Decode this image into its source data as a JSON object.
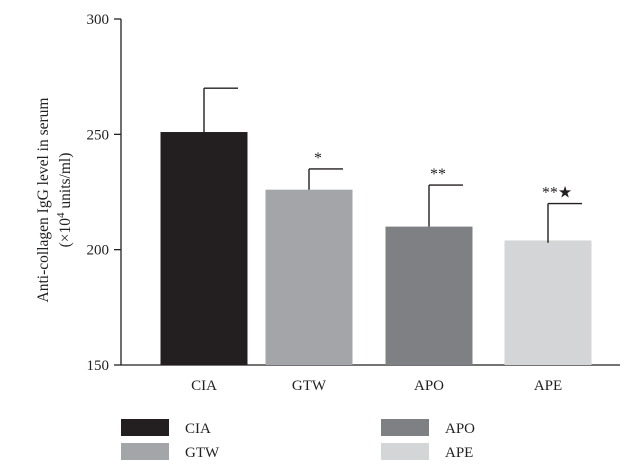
{
  "chart_data": {
    "type": "bar",
    "ylabel_line1": "Anti-collagen IgG level in serum",
    "ylabel_line2_prefix": "(×10",
    "ylabel_line2_exp": "4",
    "ylabel_line2_suffix": " units/ml)",
    "ylim": [
      150,
      300
    ],
    "yticks": [
      150,
      200,
      250,
      300
    ],
    "grid": false,
    "legend_position": "bottom",
    "categories": [
      "CIA",
      "GTW",
      "APO",
      "APE"
    ],
    "values": [
      251,
      226,
      210,
      204
    ],
    "error_upper": [
      270,
      235,
      228,
      220
    ],
    "error_lower": [
      251,
      226,
      210,
      203
    ],
    "annotations": [
      "",
      "*",
      "**",
      "**★"
    ],
    "colors": [
      "#231f20",
      "#a3a5a8",
      "#7f8083",
      "#d4d5d7"
    ],
    "legend": [
      {
        "label": "CIA",
        "color": "#231f20"
      },
      {
        "label": "GTW",
        "color": "#a3a5a8"
      },
      {
        "label": "APO",
        "color": "#7f8083"
      },
      {
        "label": "APE",
        "color": "#d4d5d7"
      }
    ]
  }
}
